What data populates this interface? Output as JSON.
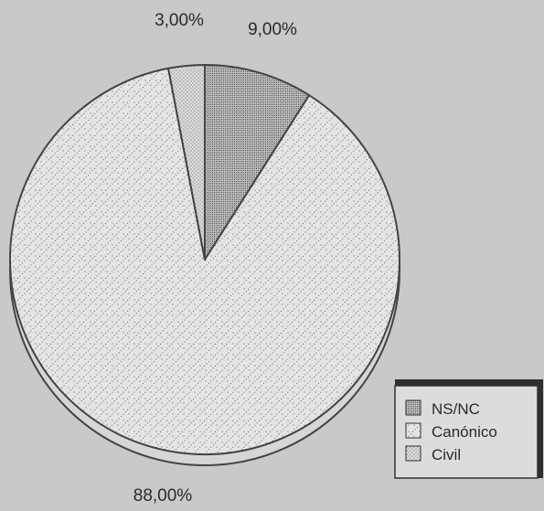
{
  "chart_data": {
    "type": "pie",
    "slices": [
      {
        "label": "NS/NC",
        "value": 9.0,
        "value_label": "9,00%",
        "pattern": "dense-cross"
      },
      {
        "label": "Canónico",
        "value": 88.0,
        "value_label": "88,00%",
        "pattern": "dotted-hatch"
      },
      {
        "label": "Civil",
        "value": 3.0,
        "value_label": "3,00%",
        "pattern": "fine-dots"
      }
    ],
    "legend": {
      "placement": "bottom-right",
      "entries": [
        "NS/NC",
        "Canónico",
        "Civil"
      ]
    },
    "style": "3d-disc",
    "colors": {
      "background": "#c9c9c9",
      "slice_fill": "#e2e2e2",
      "outline": "#444444",
      "pattern_ink": "#555555"
    }
  }
}
